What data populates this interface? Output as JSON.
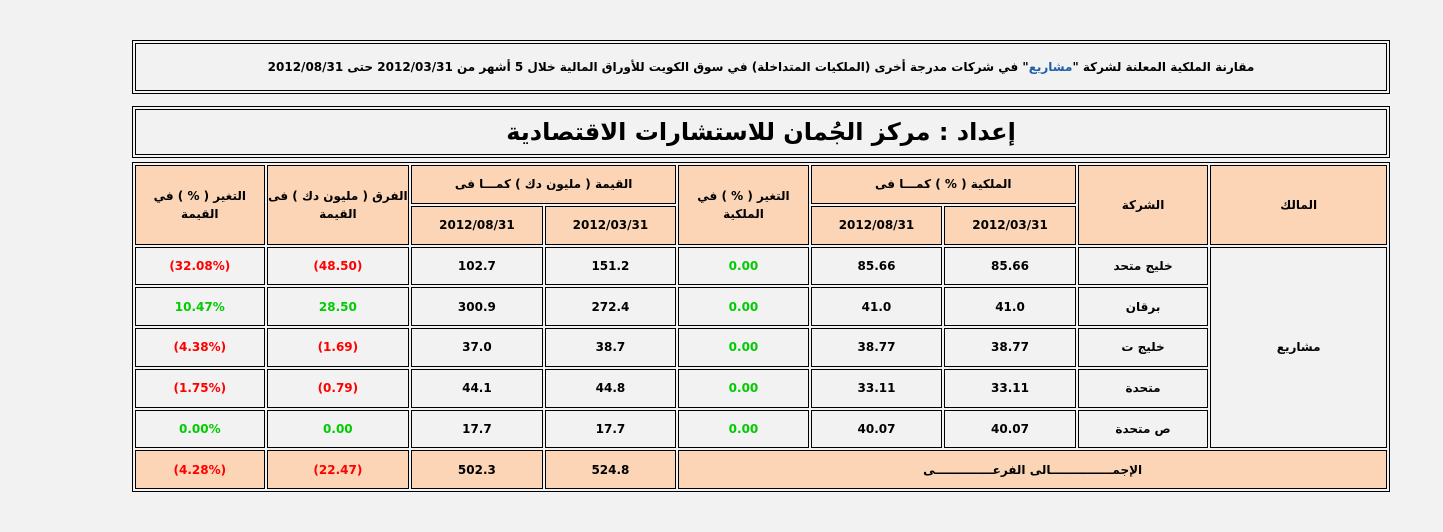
{
  "header": {
    "part1": "مقارنة الملكية المعلنة لشركة \"",
    "company": " مشاريع ",
    "part2": "\" في شركات مدرجة أخرى (الملكيات المتداخلة) في سوق الكويت للأوراق المالية خلال 5 أشهر من 2012/03/31 حتى 2012/08/31"
  },
  "prepared_by": "إعداد : مركز الجُمان للاستشارات الاقتصادية",
  "table": {
    "headers": {
      "owner": "المالك",
      "company": "الشركة",
      "ownership_group": "الملكية ( % ) كمـــا فى",
      "ownership_change": "التغير ( % ) في الملكية",
      "value_group": "القيمة ( مليون دك ) كمـــا فى",
      "value_diff": "الفرق ( مليون دك ) فى القيمة",
      "value_change": "التغير ( % ) في القيمة",
      "date1": "2012/03/31",
      "date2": "2012/08/31"
    },
    "owner": "مشاريع",
    "rows": [
      {
        "company": "خليج متحد",
        "own1": "85.66",
        "own2": "85.66",
        "own_chg": "0.00",
        "val1": "151.2",
        "val2": "102.7",
        "diff": "(48.50)",
        "val_chg": "(32.08%)"
      },
      {
        "company": "برقان",
        "own1": "41.0",
        "own2": "41.0",
        "own_chg": "0.00",
        "val1": "272.4",
        "val2": "300.9",
        "diff": "28.50",
        "val_chg": "10.47%"
      },
      {
        "company": "خليج ت",
        "own1": "38.77",
        "own2": "38.77",
        "own_chg": "0.00",
        "val1": "38.7",
        "val2": "37.0",
        "diff": "(1.69)",
        "val_chg": "(4.38%)"
      },
      {
        "company": "متحدة",
        "own1": "33.11",
        "own2": "33.11",
        "own_chg": "0.00",
        "val1": "44.8",
        "val2": "44.1",
        "diff": "(0.79)",
        "val_chg": "(1.75%)"
      },
      {
        "company": "ص متحدة",
        "own1": "40.07",
        "own2": "40.07",
        "own_chg": "0.00",
        "val1": "17.7",
        "val2": "17.7",
        "diff": "0.00",
        "val_chg": "0.00%"
      }
    ],
    "total": {
      "label": "الإجمـــــــــــــــالى الفرعــــــــــــــى",
      "val1": "524.8",
      "val2": "502.3",
      "diff": "(22.47)",
      "val_chg": "(4.28%)"
    }
  },
  "colors": {
    "header_bg": "#fbd5b5",
    "negative": "#ff0000",
    "positive": "#00cc00",
    "highlight": "#1f5fa8"
  }
}
